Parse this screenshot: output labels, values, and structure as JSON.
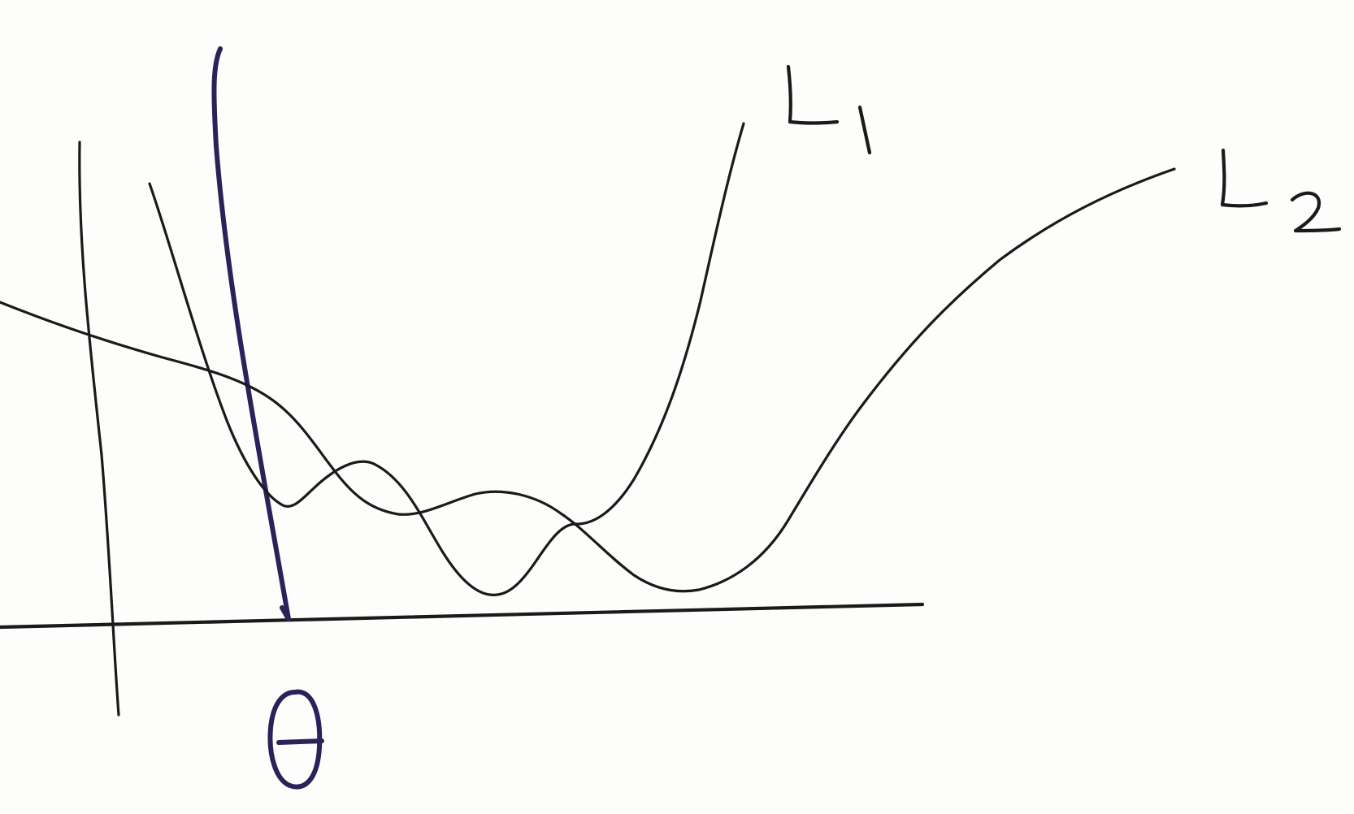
{
  "diagram": {
    "labels": {
      "curve1": "L1",
      "curve2": "L2",
      "marker": "θ"
    },
    "colors": {
      "ink": "#1a1a1a",
      "pen": "#2a2258",
      "paper": "#fdfdfc"
    }
  }
}
